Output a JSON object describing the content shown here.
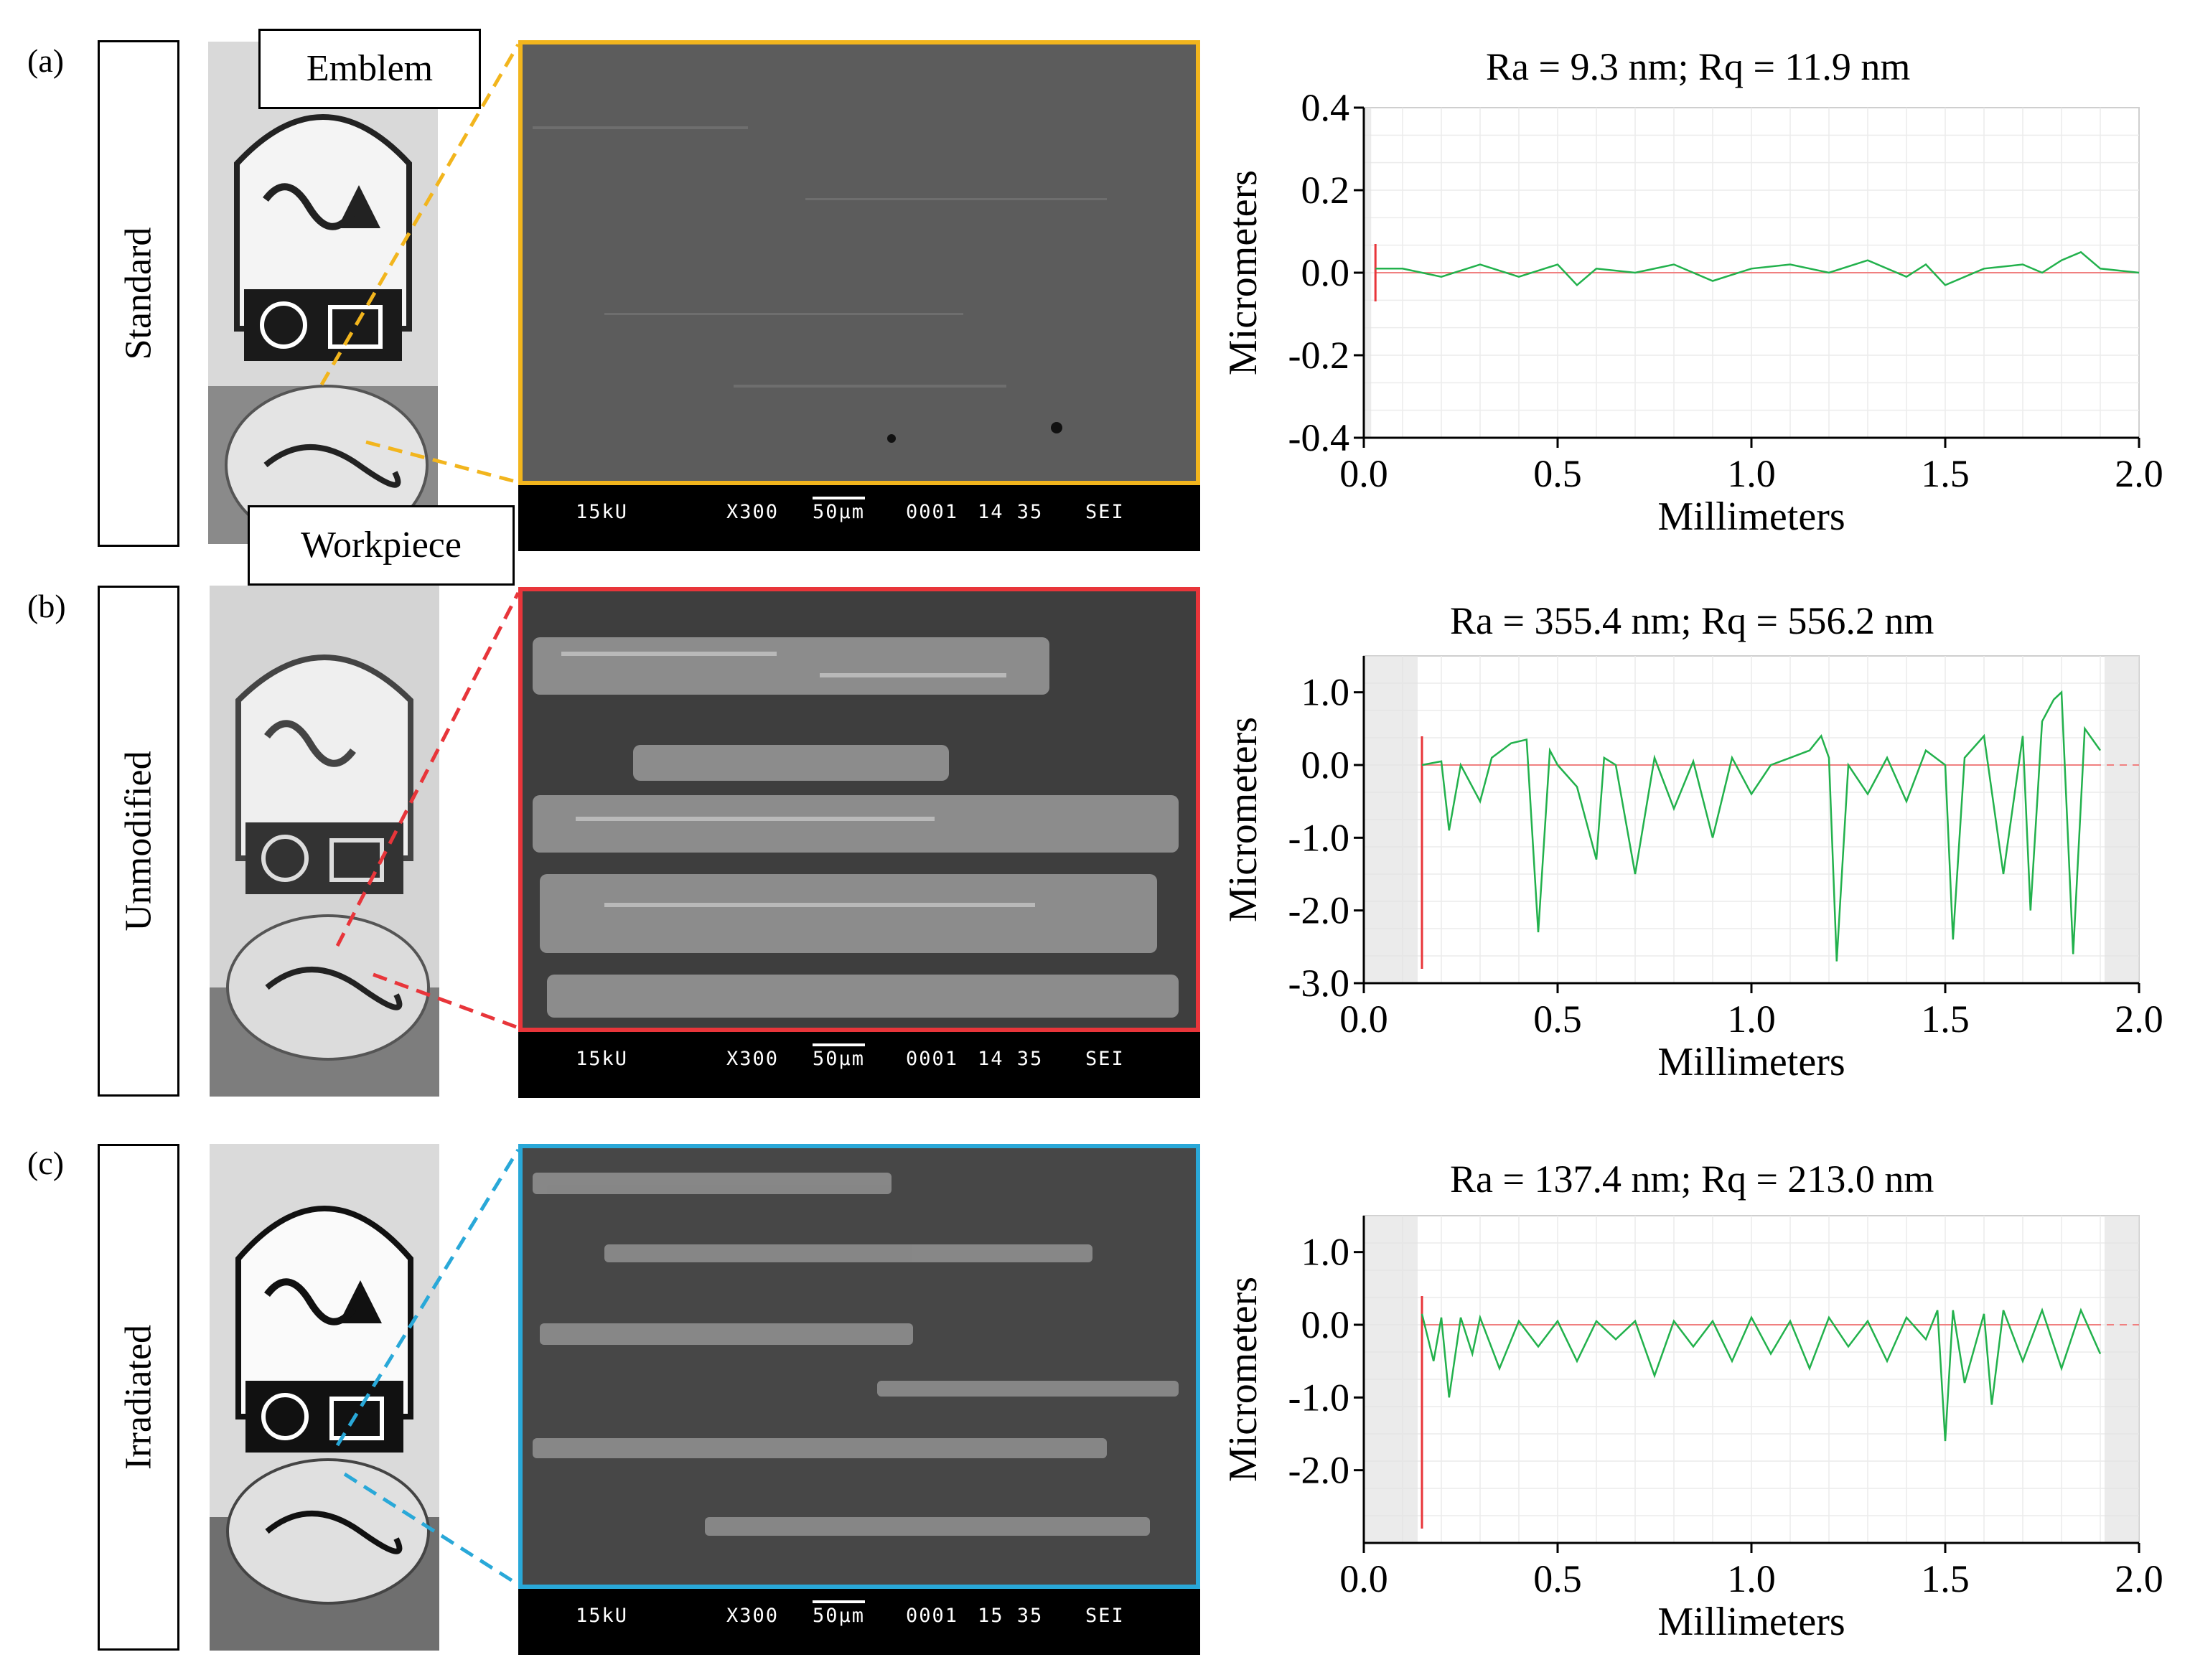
{
  "figure": {
    "panels": [
      {
        "id": "a",
        "letter": "(a)",
        "condition": "Standard",
        "frame_color": "#f2b51d",
        "sem_footer": {
          "voltage": "15kU",
          "magnification": "X300",
          "scale": "50µm",
          "id": "0001",
          "code": "14 35",
          "detector": "SEI"
        },
        "profile_title": "Ra = 9.3 nm; Rq = 11.9 nm"
      },
      {
        "id": "b",
        "letter": "(b)",
        "condition": "Unmodified",
        "frame_color": "#e8353a",
        "sem_footer": {
          "voltage": "15kU",
          "magnification": "X300",
          "scale": "50µm",
          "id": "0001",
          "code": "14 35",
          "detector": "SEI"
        },
        "profile_title": "Ra = 355.4 nm; Rq = 556.2 nm"
      },
      {
        "id": "c",
        "letter": "(c)",
        "condition": "Irradiated",
        "frame_color": "#29a8d8",
        "sem_footer": {
          "voltage": "15kU",
          "magnification": "X300",
          "scale": "50µm",
          "id": "0001",
          "code": "15 35",
          "detector": "SEI"
        },
        "profile_title": "Ra = 137.4 nm; Rq = 213.0 nm"
      }
    ],
    "callouts": {
      "emblem": "Emblem",
      "workpiece": "Workpiece"
    },
    "colors": {
      "profile_line": "#22b14c",
      "reference_line": "#f08080",
      "axis": "#000000"
    }
  },
  "chart_data": [
    {
      "type": "line",
      "title": "Ra = 9.3 nm; Rq = 11.9 nm",
      "xlabel": "Millimeters",
      "ylabel": "Micrometers",
      "xlim": [
        0.0,
        2.0
      ],
      "ylim": [
        -0.4,
        0.4
      ],
      "xticks": [
        "0.0",
        "0.5",
        "1.0",
        "1.5",
        "2.0"
      ],
      "yticks": [
        "0.4",
        "0.2",
        "0.0",
        "-0.2",
        "-0.4"
      ],
      "grid": true,
      "series": [
        {
          "x": [
            0.03,
            0.1,
            0.2,
            0.3,
            0.4,
            0.5,
            0.55,
            0.6,
            0.7,
            0.8,
            0.9,
            1.0,
            1.1,
            1.2,
            1.3,
            1.4,
            1.45,
            1.5,
            1.6,
            1.7,
            1.75,
            1.8,
            1.85,
            1.9,
            2.0
          ],
          "y": [
            0.01,
            0.01,
            -0.01,
            0.02,
            -0.01,
            0.02,
            -0.03,
            0.01,
            0.0,
            0.02,
            -0.02,
            0.01,
            0.02,
            0.0,
            0.03,
            -0.01,
            0.02,
            -0.03,
            0.01,
            0.02,
            0.0,
            0.03,
            0.05,
            0.01,
            0.0
          ]
        }
      ]
    },
    {
      "type": "line",
      "title": "Ra = 355.4 nm; Rq = 556.2 nm",
      "xlabel": "Millimeters",
      "ylabel": "Micrometers",
      "xlim": [
        0.0,
        2.0
      ],
      "ylim": [
        -3.0,
        1.5
      ],
      "xticks": [
        "0.0",
        "0.5",
        "1.0",
        "1.5",
        "2.0"
      ],
      "yticks": [
        "1.0",
        "0.0",
        "-1.0",
        "-2.0",
        "-3.0"
      ],
      "grid": true,
      "series": [
        {
          "x": [
            0.15,
            0.2,
            0.22,
            0.25,
            0.3,
            0.33,
            0.38,
            0.42,
            0.45,
            0.48,
            0.5,
            0.55,
            0.6,
            0.62,
            0.65,
            0.7,
            0.75,
            0.8,
            0.85,
            0.9,
            0.95,
            1.0,
            1.05,
            1.1,
            1.15,
            1.18,
            1.2,
            1.22,
            1.25,
            1.3,
            1.35,
            1.4,
            1.45,
            1.5,
            1.52,
            1.55,
            1.6,
            1.65,
            1.7,
            1.72,
            1.75,
            1.78,
            1.8,
            1.83,
            1.86,
            1.9
          ],
          "y": [
            0.0,
            0.05,
            -0.9,
            0.0,
            -0.5,
            0.1,
            0.3,
            0.35,
            -2.3,
            0.2,
            0.0,
            -0.3,
            -1.3,
            0.1,
            0.0,
            -1.5,
            0.1,
            -0.6,
            0.05,
            -1.0,
            0.1,
            -0.4,
            0.0,
            0.1,
            0.2,
            0.4,
            0.1,
            -2.7,
            0.0,
            -0.4,
            0.1,
            -0.5,
            0.2,
            0.0,
            -2.4,
            0.1,
            0.4,
            -1.5,
            0.4,
            -2.0,
            0.6,
            0.9,
            1.0,
            -2.6,
            0.5,
            0.2
          ]
        }
      ]
    },
    {
      "type": "line",
      "title": "Ra = 137.4 nm; Rq = 213.0 nm",
      "xlabel": "Millimeters",
      "ylabel": "Micrometers",
      "xlim": [
        0.0,
        2.0
      ],
      "ylim": [
        -3.0,
        1.5
      ],
      "xticks": [
        "0.0",
        "0.5",
        "1.0",
        "1.5",
        "2.0"
      ],
      "yticks": [
        "1.0",
        "0.0",
        "-1.0",
        "-2.0"
      ],
      "grid": true,
      "series": [
        {
          "x": [
            0.15,
            0.18,
            0.2,
            0.22,
            0.25,
            0.28,
            0.3,
            0.35,
            0.4,
            0.45,
            0.5,
            0.55,
            0.6,
            0.65,
            0.7,
            0.75,
            0.8,
            0.85,
            0.9,
            0.95,
            1.0,
            1.05,
            1.1,
            1.15,
            1.2,
            1.25,
            1.3,
            1.35,
            1.4,
            1.45,
            1.48,
            1.5,
            1.52,
            1.55,
            1.6,
            1.62,
            1.65,
            1.7,
            1.75,
            1.8,
            1.85,
            1.9
          ],
          "y": [
            0.15,
            -0.5,
            0.1,
            -1.0,
            0.1,
            -0.4,
            0.1,
            -0.6,
            0.05,
            -0.3,
            0.05,
            -0.5,
            0.05,
            -0.2,
            0.05,
            -0.7,
            0.05,
            -0.3,
            0.05,
            -0.5,
            0.1,
            -0.4,
            0.05,
            -0.6,
            0.1,
            -0.3,
            0.05,
            -0.5,
            0.1,
            -0.2,
            0.2,
            -1.6,
            0.2,
            -0.8,
            0.15,
            -1.1,
            0.2,
            -0.5,
            0.2,
            -0.6,
            0.2,
            -0.4
          ]
        }
      ]
    }
  ]
}
